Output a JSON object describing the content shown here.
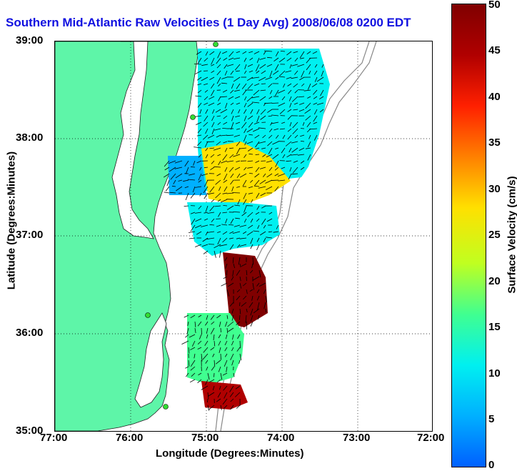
{
  "title": "Southern Mid-Atlantic Raw Velocities (1 Day Avg) 2008/06/08 0200 EDT",
  "axes": {
    "x_label": "Longitude (Degrees:Minutes)",
    "y_label": "Latitude (Degrees:Minutes)",
    "x_ticks": [
      "77:00",
      "76:00",
      "75:00",
      "74:00",
      "73:00",
      "72:00"
    ],
    "y_ticks": [
      "39:00",
      "38:00",
      "37:00",
      "36:00",
      "35:00"
    ],
    "x_range": [
      -77,
      -72
    ],
    "y_range": [
      35,
      39
    ]
  },
  "colorbar": {
    "label": "Surface Velocity (cm/s)",
    "ticks": [
      "50",
      "45",
      "40",
      "35",
      "30",
      "25",
      "20",
      "15",
      "10",
      "5",
      "0"
    ],
    "range": [
      0,
      50
    ],
    "colors": [
      "#0060ff",
      "#00b0ff",
      "#00f0f0",
      "#40ff90",
      "#c0ff20",
      "#ffe000",
      "#ff8000",
      "#ff2000",
      "#b00000",
      "#800000"
    ]
  },
  "colors": {
    "land": "#5ef5a8",
    "water": "#ffffff",
    "title": "#1010e0",
    "arrow": "#000000",
    "station": "#33dd33"
  }
}
